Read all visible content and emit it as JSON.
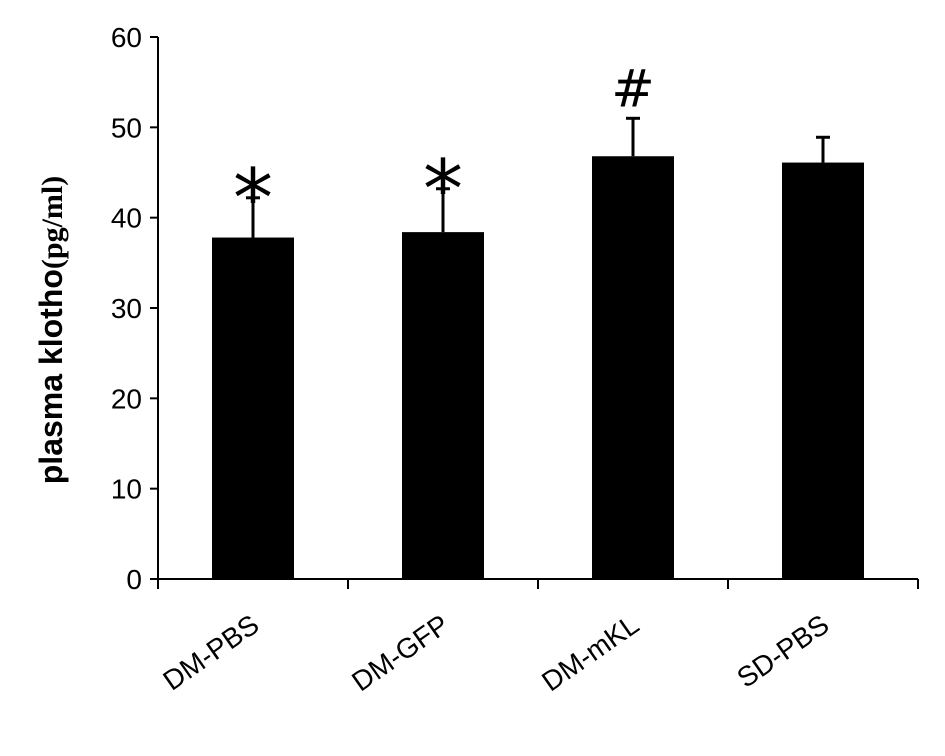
{
  "chart_data": {
    "type": "bar",
    "title": "",
    "xlabel": "",
    "ylabel": "plasma klotho",
    "ylabel_unit": "(pg/ml)",
    "categories": [
      "DM-PBS",
      "DM-GFP",
      "DM-mKL",
      "SD-PBS"
    ],
    "values": [
      37.8,
      38.4,
      46.8,
      46.1
    ],
    "errors": [
      4.4,
      4.8,
      4.2,
      2.8
    ],
    "annotations": [
      "*",
      "*",
      "#",
      ""
    ],
    "ylim": [
      0,
      60
    ],
    "yticks": [
      0,
      10,
      20,
      30,
      40,
      50,
      60
    ],
    "bar_color": "#000000",
    "grid": false,
    "legend": "none"
  }
}
